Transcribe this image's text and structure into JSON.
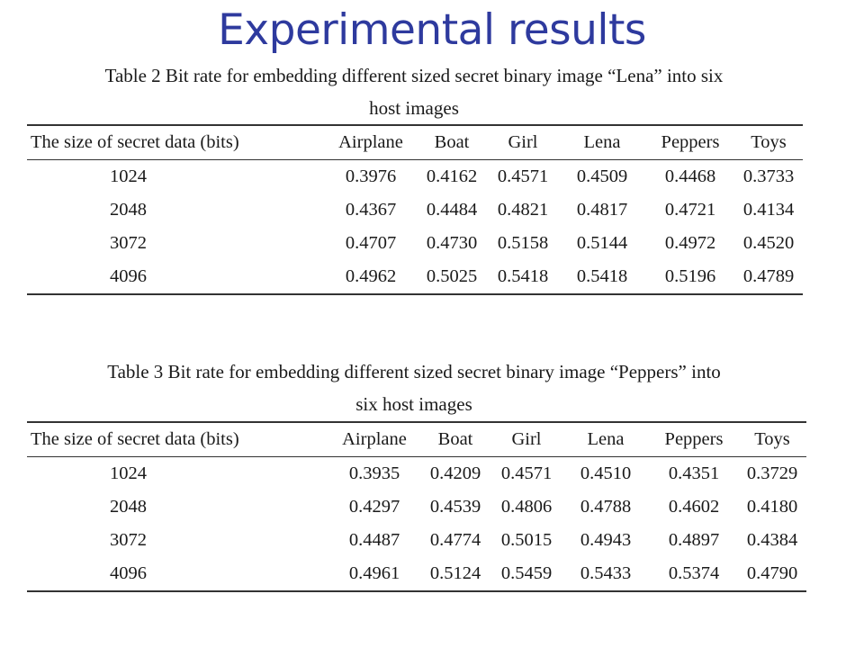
{
  "title": "Experimental results",
  "tables": [
    {
      "caption_lines": [
        "Table 2   Bit rate for embedding different sized secret binary image “Lena” into six",
        "host images"
      ],
      "headers": [
        "The size of secret  data  (bits)",
        "Airplane",
        "Boat",
        "Girl",
        "Lena",
        "Peppers",
        "Toys"
      ],
      "rows": [
        [
          "1024",
          "0.3976",
          "0.4162",
          "0.4571",
          "0.4509",
          "0.4468",
          "0.3733"
        ],
        [
          "2048",
          "0.4367",
          "0.4484",
          "0.4821",
          "0.4817",
          "0.4721",
          "0.4134"
        ],
        [
          "3072",
          "0.4707",
          "0.4730",
          "0.5158",
          "0.5144",
          "0.4972",
          "0.4520"
        ],
        [
          "4096",
          "0.4962",
          "0.5025",
          "0.5418",
          "0.5418",
          "0.5196",
          "0.4789"
        ]
      ]
    },
    {
      "caption_lines": [
        "Table 3   Bit rate for embedding different sized secret binary image “Peppers” into",
        "six host images"
      ],
      "headers": [
        "The  size  of  secret  data  (bits)",
        "Airplane",
        "Boat",
        "Girl",
        "Lena",
        "Peppers",
        "Toys"
      ],
      "rows": [
        [
          "1024",
          "0.3935",
          "0.4209",
          "0.4571",
          "0.4510",
          "0.4351",
          "0.3729"
        ],
        [
          "2048",
          "0.4297",
          "0.4539",
          "0.4806",
          "0.4788",
          "0.4602",
          "0.4180"
        ],
        [
          "3072",
          "0.4487",
          "0.4774",
          "0.5015",
          "0.4943",
          "0.4897",
          "0.4384"
        ],
        [
          "4096",
          "0.4961",
          "0.5124",
          "0.5459",
          "0.5433",
          "0.5374",
          "0.4790"
        ]
      ]
    }
  ]
}
